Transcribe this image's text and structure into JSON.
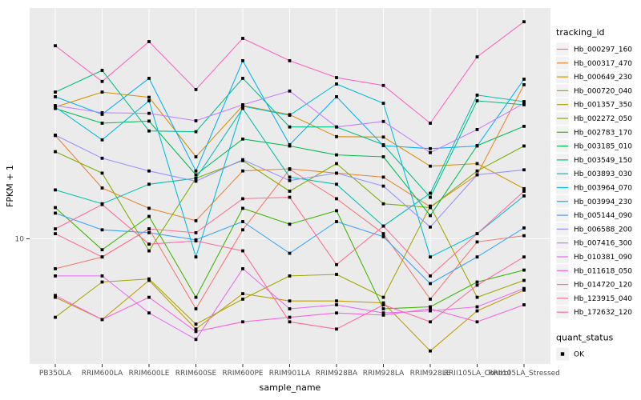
{
  "figure": {
    "y_axis_title": "FPKM + 1",
    "x_axis_title": "sample_name",
    "y_tick_label": "10",
    "legend": {
      "tracking_title": "tracking_id",
      "quant_title": "quant_status",
      "quant_item_label": "OK"
    },
    "colors": {
      "panel_bg": "#EBEBEB",
      "grid": "#FFFFFF",
      "tick_text": "#4D4D4D",
      "axis_text": "#000000",
      "legend_key_bg": "#F2F2F2",
      "point": "#000000"
    }
  },
  "chart_data": {
    "type": "line",
    "title": "",
    "xlabel": "sample_name",
    "ylabel": "FPKM + 1",
    "yscale": "log10",
    "ylim": [
      3.0,
      92
    ],
    "yticks": [
      10
    ],
    "grid": true,
    "legend_position": "right",
    "legend_title": "tracking_id",
    "point_legend": {
      "title": "quant_status",
      "label": "OK",
      "marker": "black-square"
    },
    "categories": [
      "PB350LA",
      "RRIM600LA",
      "RRIM600LE",
      "RRIM600SE",
      "RRIM600PE",
      "RRIM901LA",
      "RRIM928BA",
      "RRIM928LA",
      "RRIM928LE",
      "RRII105LA_Control",
      "RRII105LA_Stressed"
    ],
    "series": [
      {
        "name": "Hb_000297_160",
        "color": "#F8766D",
        "values": [
          7.5,
          8.4,
          11.0,
          5.1,
          10.9,
          19.5,
          14.7,
          10.5,
          5.6,
          9.7,
          10.3
        ]
      },
      {
        "name": "Hb_000317_470",
        "color": "#EA8331",
        "values": [
          27,
          16.3,
          13.4,
          11.9,
          19.2,
          19.6,
          18.8,
          18.1,
          13.6,
          18.5,
          44
        ]
      },
      {
        "name": "Hb_000649_230",
        "color": "#D89000",
        "values": [
          35.5,
          41,
          39,
          22,
          36,
          33,
          26.7,
          26.6,
          20.1,
          20.6,
          16.2
        ]
      },
      {
        "name": "Hb_000720_040",
        "color": "#C09B00",
        "values": [
          5.7,
          4.6,
          6.7,
          4.2,
          5.9,
          5.5,
          5.5,
          5.4,
          3.4,
          5.0,
          6.1
        ]
      },
      {
        "name": "Hb_001357_350",
        "color": "#A3A500",
        "values": [
          4.7,
          6.6,
          6.8,
          4.4,
          5.6,
          7.0,
          7.1,
          5.7,
          13.7,
          5.7,
          6.7
        ]
      },
      {
        "name": "Hb_002272_050",
        "color": "#7CAE00",
        "values": [
          23.1,
          18.8,
          8.9,
          17.9,
          21.2,
          15.8,
          20.6,
          14.0,
          13.5,
          19.2,
          24.4
        ]
      },
      {
        "name": "Hb_002783_170",
        "color": "#39B600",
        "values": [
          13.5,
          9.0,
          12.4,
          5.7,
          13.4,
          11.5,
          13.1,
          5.1,
          5.2,
          6.6,
          7.4
        ]
      },
      {
        "name": "Hb_003185_010",
        "color": "#00BB4E",
        "values": [
          35,
          30.4,
          31,
          18.5,
          26.1,
          24.4,
          22.4,
          22,
          12.5,
          24.5,
          29.5
        ]
      },
      {
        "name": "Hb_003549_150",
        "color": "#00C087",
        "values": [
          41,
          50.5,
          28.2,
          28,
          46.8,
          29.3,
          29.3,
          24.7,
          14.9,
          37.7,
          36.3
        ]
      },
      {
        "name": "Hb_003893_030",
        "color": "#00C0AF",
        "values": [
          16.0,
          14.0,
          16.9,
          17.9,
          35,
          18.1,
          16.9,
          11.3,
          15.5,
          39.8,
          37.4
        ]
      },
      {
        "name": "Hb_003964_070",
        "color": "#00BCD8",
        "values": [
          35.5,
          25.9,
          37.7,
          8.4,
          35.8,
          32.8,
          44.3,
          36.8,
          8.4,
          10.5,
          15.1
        ]
      },
      {
        "name": "Hb_003994_230",
        "color": "#00B0F6",
        "values": [
          39.2,
          33.1,
          46.8,
          19.2,
          55.4,
          24.7,
          39.2,
          24.5,
          23.8,
          24.4,
          46.4
        ]
      },
      {
        "name": "Hb_005144_090",
        "color": "#35A2FF",
        "values": [
          12.8,
          10.9,
          10.6,
          9.9,
          11.8,
          8.7,
          11.8,
          10.2,
          6.5,
          8.4,
          11.1
        ]
      },
      {
        "name": "Hb_006588_200",
        "color": "#9590FF",
        "values": [
          27.1,
          21.7,
          19.2,
          17.4,
          21.4,
          17.5,
          18.8,
          16.6,
          11.2,
          18.5,
          19.4
        ]
      },
      {
        "name": "Hb_007416_300",
        "color": "#C77CFF",
        "values": [
          36,
          33.6,
          33.4,
          31.1,
          36.3,
          41.4,
          29.3,
          30.9,
          22.9,
          28.6,
          36.8
        ]
      },
      {
        "name": "Hb_010381_090",
        "color": "#E76BF3",
        "values": [
          7.0,
          7.0,
          4.9,
          3.8,
          7.5,
          5.1,
          5.3,
          4.9,
          5.0,
          5.2,
          6.2
        ]
      },
      {
        "name": "Hb_011618_050",
        "color": "#FA62DB",
        "values": [
          5.8,
          4.6,
          5.7,
          4.1,
          4.5,
          4.7,
          4.9,
          4.8,
          5.1,
          4.5,
          5.3
        ]
      },
      {
        "name": "Hb_014720_120",
        "color": "#FF61C3",
        "values": [
          64,
          45.4,
          66.6,
          42,
          68.7,
          55.4,
          47.1,
          43.7,
          30.4,
          57.5,
          80.6
        ]
      },
      {
        "name": "Hb_123915_040",
        "color": "#FF67A4",
        "values": [
          11.0,
          13.9,
          9.5,
          9.8,
          8.9,
          4.5,
          4.2,
          5.3,
          4.5,
          6.4,
          8.4
        ]
      },
      {
        "name": "Hb_172632_120",
        "color": "#FF6C90",
        "values": [
          10.5,
          8.4,
          11.0,
          10.6,
          14.7,
          14.9,
          7.8,
          11.3,
          7.0,
          10.5,
          15.8
        ]
      }
    ]
  }
}
